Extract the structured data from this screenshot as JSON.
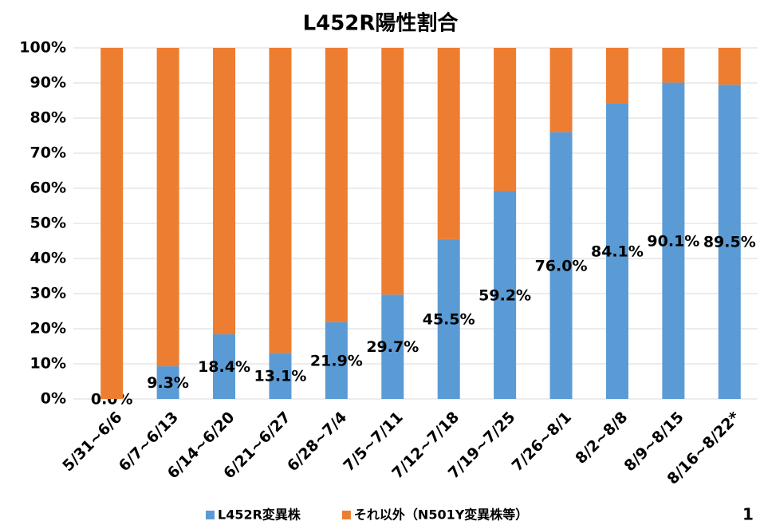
{
  "chart_data": {
    "type": "stacked_bar",
    "title": "L452R陽性割合",
    "categories": [
      "5/31~6/6",
      "6/7~6/13",
      "6/14~6/20",
      "6/21~6/27",
      "6/28~7/4",
      "7/5~7/11",
      "7/12~7/18",
      "7/19~7/25",
      "7/26~8/1",
      "8/2~8/8",
      "8/9~8/15",
      "8/16~8/22*"
    ],
    "series": [
      {
        "name": "L452R変異株",
        "color": "#5b9bd5",
        "values": [
          0.0,
          9.3,
          18.4,
          13.1,
          21.9,
          29.7,
          45.5,
          59.2,
          76.0,
          84.1,
          90.1,
          89.5
        ],
        "value_labels": [
          "0.0%",
          "9.3%",
          "18.4%",
          "13.1%",
          "21.9%",
          "29.7%",
          "45.5%",
          "59.2%",
          "76.0%",
          "84.1%",
          "90.1%",
          "89.5%"
        ]
      },
      {
        "name": "それ以外（N501Y変異株等）",
        "color": "#ed7d31",
        "values": [
          100.0,
          90.7,
          81.6,
          86.9,
          78.1,
          70.3,
          54.5,
          40.8,
          24.0,
          15.9,
          9.9,
          10.5
        ]
      }
    ],
    "ylim": [
      0,
      100
    ],
    "yticks": [
      {
        "value": 0,
        "label": "0%"
      },
      {
        "value": 10,
        "label": "10%"
      },
      {
        "value": 20,
        "label": "20%"
      },
      {
        "value": 30,
        "label": "30%"
      },
      {
        "value": 40,
        "label": "40%"
      },
      {
        "value": 50,
        "label": "50%"
      },
      {
        "value": 60,
        "label": "60%"
      },
      {
        "value": 70,
        "label": "70%"
      },
      {
        "value": 80,
        "label": "80%"
      },
      {
        "value": 90,
        "label": "90%"
      },
      {
        "value": 100,
        "label": "100%"
      }
    ],
    "grid": true,
    "legend": "bottom"
  },
  "page_number": "1"
}
